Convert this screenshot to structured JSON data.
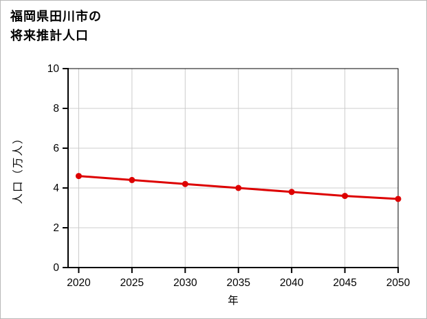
{
  "page": {
    "background": "#ffffff",
    "frame_border_color": "#b8b8b8"
  },
  "title": {
    "line1": "福岡県田川市の",
    "line2": "将来推計人口"
  },
  "chart_data": {
    "type": "line",
    "title": "福岡県田川市の将来推計人口",
    "xlabel": "年",
    "ylabel": "人口（万人）",
    "x": [
      2020,
      2025,
      2030,
      2035,
      2040,
      2045,
      2050
    ],
    "series": [
      {
        "name": "将来推計人口",
        "values": [
          4.6,
          4.4,
          4.2,
          4.0,
          3.8,
          3.6,
          3.45
        ],
        "color": "#dd0000"
      }
    ],
    "xlim": [
      2019,
      2050
    ],
    "ylim": [
      0,
      10
    ],
    "xticks": [
      2020,
      2025,
      2030,
      2035,
      2040,
      2045,
      2050
    ],
    "yticks": [
      0,
      2,
      4,
      6,
      8,
      10
    ],
    "grid": true,
    "grid_color": "#cccccc",
    "axis_color": "#000000",
    "tick_label_color": "#000000",
    "legend": "none",
    "marker": "circle"
  }
}
